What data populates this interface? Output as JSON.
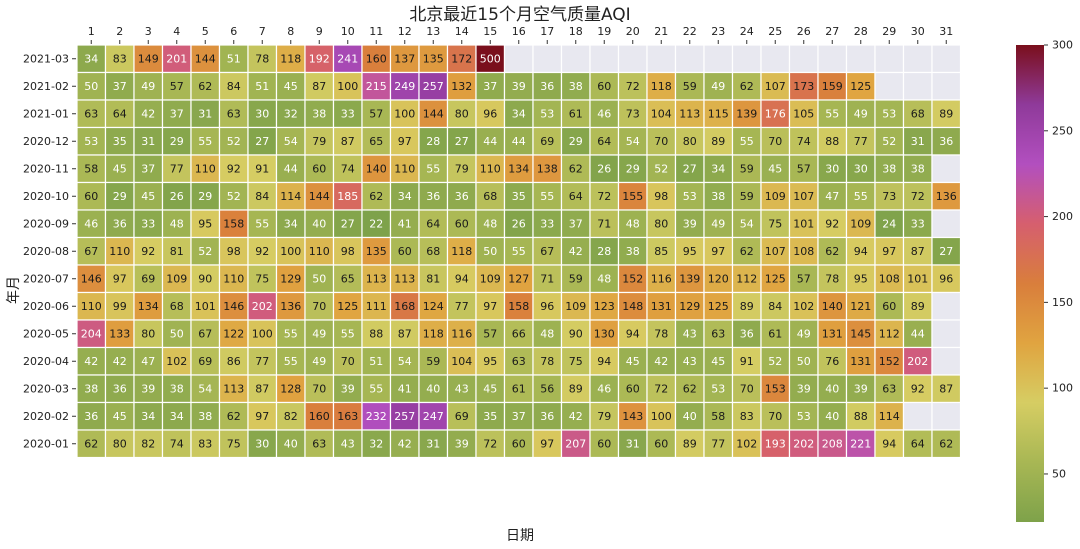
{
  "chart_data": {
    "type": "heatmap",
    "title": "北京最近15个月空气质量AQI",
    "xlabel": "日期",
    "ylabel": "年月",
    "x_ticks": [
      "1",
      "2",
      "3",
      "4",
      "5",
      "6",
      "7",
      "8",
      "9",
      "10",
      "11",
      "12",
      "13",
      "14",
      "15",
      "16",
      "17",
      "18",
      "19",
      "20",
      "21",
      "22",
      "23",
      "24",
      "25",
      "26",
      "27",
      "28",
      "29",
      "30",
      "31"
    ],
    "rows": [
      {
        "label": "2021-03",
        "values": [
          34,
          83,
          149,
          201,
          144,
          51,
          78,
          118,
          192,
          241,
          160,
          137,
          135,
          172,
          500,
          null,
          null,
          null,
          null,
          null,
          null,
          null,
          null,
          null,
          null,
          null,
          null,
          null,
          null,
          null,
          null
        ]
      },
      {
        "label": "2021-02",
        "values": [
          50,
          37,
          49,
          57,
          62,
          84,
          51,
          45,
          87,
          100,
          215,
          249,
          257,
          132,
          37,
          39,
          36,
          38,
          60,
          72,
          118,
          59,
          49,
          62,
          107,
          173,
          159,
          125,
          null,
          null,
          null
        ]
      },
      {
        "label": "2021-01",
        "values": [
          63,
          64,
          42,
          37,
          31,
          63,
          30,
          32,
          38,
          33,
          57,
          100,
          144,
          80,
          96,
          34,
          53,
          61,
          46,
          73,
          104,
          113,
          115,
          139,
          176,
          105,
          55,
          49,
          53,
          68,
          89
        ]
      },
      {
        "label": "2020-12",
        "values": [
          53,
          35,
          31,
          29,
          55,
          52,
          27,
          54,
          79,
          87,
          65,
          97,
          28,
          27,
          44,
          44,
          69,
          29,
          64,
          54,
          70,
          80,
          89,
          55,
          70,
          74,
          88,
          77,
          52,
          31,
          36
        ]
      },
      {
        "label": "2020-11",
        "values": [
          58,
          45,
          37,
          77,
          110,
          92,
          91,
          44,
          60,
          74,
          140,
          110,
          55,
          79,
          110,
          134,
          138,
          62,
          26,
          29,
          52,
          27,
          34,
          59,
          45,
          57,
          30,
          30,
          38,
          38,
          null
        ]
      },
      {
        "label": "2020-10",
        "values": [
          60,
          29,
          45,
          26,
          29,
          52,
          84,
          114,
          144,
          185,
          62,
          34,
          36,
          36,
          68,
          35,
          55,
          64,
          72,
          155,
          98,
          53,
          38,
          59,
          109,
          107,
          47,
          55,
          73,
          72,
          136
        ]
      },
      {
        "label": "2020-09",
        "values": [
          46,
          36,
          33,
          48,
          95,
          158,
          55,
          34,
          40,
          27,
          22,
          41,
          64,
          60,
          48,
          26,
          33,
          37,
          71,
          48,
          80,
          39,
          49,
          54,
          75,
          101,
          92,
          109,
          24,
          33,
          null
        ]
      },
      {
        "label": "2020-08",
        "values": [
          67,
          110,
          92,
          81,
          52,
          98,
          92,
          100,
          110,
          98,
          135,
          60,
          68,
          118,
          50,
          55,
          67,
          42,
          28,
          38,
          85,
          95,
          97,
          62,
          107,
          108,
          62,
          94,
          97,
          87,
          27
        ]
      },
      {
        "label": "2020-07",
        "values": [
          146,
          97,
          69,
          109,
          90,
          110,
          75,
          129,
          50,
          65,
          113,
          113,
          81,
          94,
          109,
          127,
          71,
          59,
          48,
          152,
          116,
          139,
          120,
          112,
          125,
          57,
          78,
          95,
          108,
          101,
          96
        ]
      },
      {
        "label": "2020-06",
        "values": [
          110,
          99,
          134,
          68,
          101,
          146,
          202,
          136,
          70,
          125,
          111,
          168,
          124,
          77,
          97,
          158,
          96,
          109,
          123,
          148,
          131,
          129,
          125,
          89,
          84,
          102,
          140,
          121,
          60,
          89,
          null
        ]
      },
      {
        "label": "2020-05",
        "values": [
          204,
          133,
          80,
          50,
          67,
          122,
          100,
          55,
          49,
          55,
          88,
          87,
          118,
          116,
          57,
          66,
          48,
          90,
          130,
          94,
          78,
          43,
          63,
          36,
          61,
          49,
          131,
          145,
          112,
          44,
          null
        ]
      },
      {
        "label": "2020-04",
        "values": [
          42,
          42,
          47,
          102,
          69,
          86,
          77,
          55,
          49,
          70,
          51,
          54,
          59,
          104,
          95,
          63,
          78,
          75,
          94,
          45,
          42,
          43,
          45,
          91,
          52,
          50,
          76,
          131,
          152,
          202,
          null
        ]
      },
      {
        "label": "2020-03",
        "values": [
          38,
          36,
          39,
          38,
          54,
          113,
          87,
          128,
          70,
          39,
          55,
          41,
          40,
          43,
          45,
          61,
          56,
          89,
          46,
          60,
          72,
          62,
          53,
          70,
          153,
          39,
          40,
          39,
          63,
          92,
          87
        ]
      },
      {
        "label": "2020-02",
        "values": [
          36,
          45,
          34,
          34,
          38,
          62,
          97,
          82,
          160,
          163,
          232,
          257,
          247,
          69,
          35,
          37,
          36,
          42,
          79,
          143,
          100,
          40,
          58,
          83,
          70,
          53,
          40,
          88,
          114,
          null,
          null
        ]
      },
      {
        "label": "2020-01",
        "values": [
          62,
          80,
          82,
          74,
          83,
          75,
          30,
          40,
          63,
          43,
          32,
          42,
          31,
          39,
          72,
          60,
          97,
          207,
          60,
          31,
          60,
          89,
          77,
          102,
          193,
          202,
          208,
          221,
          94,
          64,
          62
        ]
      }
    ],
    "colorbar": {
      "min": 22,
      "max": 300,
      "ticks": [
        "50",
        "100",
        "150",
        "200",
        "250",
        "300"
      ]
    },
    "colorscale": [
      "#7ea24a",
      "#a8b754",
      "#d6cd63",
      "#e0a440",
      "#d97e3c",
      "#d65f6e",
      "#b24fbf",
      "#8f3a9a",
      "#7a0f1c"
    ],
    "missing_color": "#e8e8f0"
  }
}
